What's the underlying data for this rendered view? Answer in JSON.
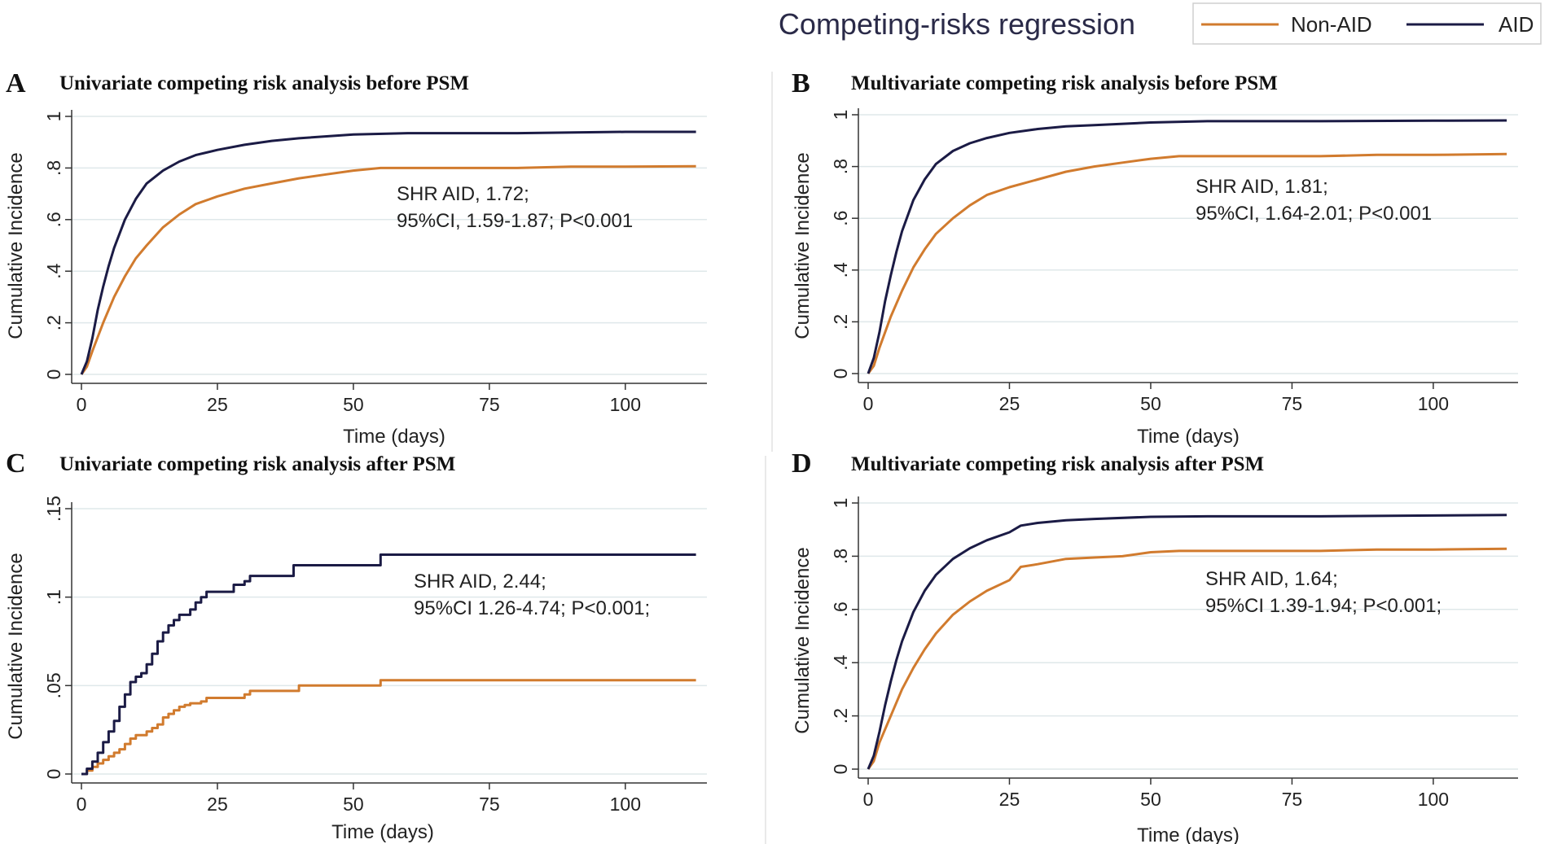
{
  "figure": {
    "title": "Competing-risks regression",
    "legend": [
      {
        "label": "Non-AID",
        "color": "#d17b2e"
      },
      {
        "label": "AID",
        "color": "#1b1b45"
      }
    ]
  },
  "chart_data": [
    {
      "type": "line",
      "panel": "A",
      "title": "Univariate competing risk analysis before PSM",
      "xlabel": "Time (days)",
      "ylabel": "Cumulative Incidence",
      "xlim": [
        0,
        115
      ],
      "ylim": [
        0,
        1.0
      ],
      "x_ticks": [
        0,
        25,
        50,
        75,
        100
      ],
      "y_ticks": [
        0,
        0.2,
        0.4,
        0.6,
        0.8,
        1.0
      ],
      "y_tick_labels": [
        "0",
        ".2",
        ".4",
        ".6",
        ".8",
        "1"
      ],
      "grid": true,
      "annotation": [
        "SHR  AID, 1.72;",
        "95%CI, 1.59-1.87; P<0.001"
      ],
      "series": [
        {
          "name": "Non-AID",
          "color": "#d17b2e",
          "x": [
            0,
            1,
            2,
            4,
            6,
            8,
            10,
            12,
            15,
            18,
            21,
            25,
            30,
            35,
            40,
            45,
            50,
            55,
            60,
            70,
            80,
            90,
            100,
            113
          ],
          "y": [
            0,
            0.03,
            0.09,
            0.2,
            0.3,
            0.38,
            0.45,
            0.5,
            0.57,
            0.62,
            0.66,
            0.69,
            0.72,
            0.74,
            0.76,
            0.775,
            0.79,
            0.8,
            0.8,
            0.8,
            0.8,
            0.805,
            0.805,
            0.807
          ]
        },
        {
          "name": "AID",
          "color": "#1b1b45",
          "x": [
            0,
            1,
            2,
            3,
            4,
            5,
            6,
            8,
            10,
            12,
            15,
            18,
            21,
            25,
            30,
            35,
            40,
            50,
            60,
            80,
            100,
            113
          ],
          "y": [
            0,
            0.05,
            0.14,
            0.25,
            0.34,
            0.42,
            0.49,
            0.6,
            0.68,
            0.74,
            0.79,
            0.825,
            0.85,
            0.87,
            0.89,
            0.905,
            0.915,
            0.93,
            0.935,
            0.935,
            0.94,
            0.94
          ]
        }
      ]
    },
    {
      "type": "line",
      "panel": "B",
      "title": "Multivariate competing risk analysis before PSM",
      "xlabel": "Time (days)",
      "ylabel": "Cumulative Incidence",
      "xlim": [
        0,
        115
      ],
      "ylim": [
        0,
        1.0
      ],
      "x_ticks": [
        0,
        25,
        50,
        75,
        100
      ],
      "y_ticks": [
        0,
        0.2,
        0.4,
        0.6,
        0.8,
        1.0
      ],
      "y_tick_labels": [
        "0",
        ".2",
        ".4",
        ".6",
        ".8",
        "1"
      ],
      "grid": true,
      "annotation": [
        "SHR  AID, 1.81;",
        "95%CI, 1.64-2.01; P<0.001"
      ],
      "series": [
        {
          "name": "Non-AID",
          "color": "#d17b2e",
          "x": [
            0,
            1,
            2,
            4,
            6,
            8,
            10,
            12,
            15,
            18,
            21,
            25,
            30,
            35,
            40,
            45,
            50,
            55,
            60,
            70,
            80,
            90,
            100,
            113
          ],
          "y": [
            0,
            0.03,
            0.1,
            0.22,
            0.32,
            0.41,
            0.48,
            0.54,
            0.6,
            0.65,
            0.69,
            0.72,
            0.75,
            0.78,
            0.8,
            0.815,
            0.83,
            0.84,
            0.84,
            0.84,
            0.84,
            0.845,
            0.845,
            0.848
          ]
        },
        {
          "name": "AID",
          "color": "#1b1b45",
          "x": [
            0,
            1,
            2,
            3,
            4,
            5,
            6,
            8,
            10,
            12,
            15,
            18,
            21,
            25,
            30,
            35,
            40,
            50,
            60,
            80,
            100,
            113
          ],
          "y": [
            0,
            0.06,
            0.16,
            0.28,
            0.38,
            0.47,
            0.55,
            0.67,
            0.75,
            0.81,
            0.86,
            0.89,
            0.91,
            0.93,
            0.945,
            0.955,
            0.96,
            0.97,
            0.975,
            0.975,
            0.977,
            0.978
          ]
        }
      ]
    },
    {
      "type": "line",
      "panel": "C",
      "title": "Univariate competing risk analysis after PSM",
      "xlabel": "Time (days)",
      "ylabel": "Cumulative Incidence",
      "xlim": [
        0,
        115
      ],
      "ylim": [
        0,
        0.15
      ],
      "x_ticks": [
        0,
        25,
        50,
        75,
        100
      ],
      "y_ticks": [
        0,
        0.05,
        0.1,
        0.15
      ],
      "y_tick_labels": [
        "0",
        ".05",
        ".1",
        ".15"
      ],
      "grid": true,
      "annotation": [
        "SHR  AID, 2.44;",
        "95%CI 1.26-4.74; P<0.001;"
      ],
      "series": [
        {
          "name": "Non-AID",
          "color": "#d17b2e",
          "step": true,
          "x": [
            0,
            1,
            2,
            3,
            4,
            5,
            6,
            7,
            8,
            9,
            10,
            12,
            13,
            14,
            15,
            16,
            17,
            18,
            19,
            20,
            22,
            23,
            25,
            28,
            30,
            31,
            35,
            40,
            45,
            50,
            55,
            60,
            70,
            80,
            100,
            113
          ],
          "y": [
            0,
            0.002,
            0.004,
            0.006,
            0.008,
            0.01,
            0.012,
            0.014,
            0.017,
            0.02,
            0.022,
            0.024,
            0.026,
            0.028,
            0.032,
            0.034,
            0.036,
            0.038,
            0.039,
            0.04,
            0.041,
            0.043,
            0.043,
            0.043,
            0.045,
            0.047,
            0.047,
            0.05,
            0.05,
            0.05,
            0.053,
            0.053,
            0.053,
            0.053,
            0.053,
            0.053
          ]
        },
        {
          "name": "AID",
          "color": "#1b1b45",
          "step": true,
          "x": [
            0,
            1,
            2,
            3,
            4,
            5,
            6,
            7,
            8,
            9,
            10,
            11,
            12,
            13,
            14,
            15,
            16,
            17,
            18,
            19,
            20,
            21,
            22,
            23,
            25,
            27,
            28,
            30,
            31,
            35,
            39,
            45,
            50,
            55,
            60,
            70,
            80,
            100,
            113
          ],
          "y": [
            0,
            0.003,
            0.007,
            0.012,
            0.018,
            0.024,
            0.03,
            0.038,
            0.045,
            0.052,
            0.055,
            0.057,
            0.062,
            0.068,
            0.075,
            0.08,
            0.084,
            0.087,
            0.09,
            0.09,
            0.093,
            0.097,
            0.1,
            0.103,
            0.103,
            0.103,
            0.107,
            0.109,
            0.112,
            0.112,
            0.118,
            0.118,
            0.118,
            0.124,
            0.124,
            0.124,
            0.124,
            0.124,
            0.124
          ]
        }
      ]
    },
    {
      "type": "line",
      "panel": "D",
      "title": "Multivariate competing risk analysis after PSM",
      "xlabel": "Time (days)",
      "ylabel": "Cumulative Incidence",
      "xlim": [
        0,
        115
      ],
      "ylim": [
        0,
        1.0
      ],
      "x_ticks": [
        0,
        25,
        50,
        75,
        100
      ],
      "y_ticks": [
        0,
        0.2,
        0.4,
        0.6,
        0.8,
        1.0
      ],
      "y_tick_labels": [
        "0",
        ".2",
        ".4",
        ".6",
        ".8",
        "1"
      ],
      "grid": true,
      "annotation": [
        "SHR  AID, 1.64;",
        "95%CI 1.39-1.94; P<0.001;"
      ],
      "series": [
        {
          "name": "Non-AID",
          "color": "#d17b2e",
          "x": [
            0,
            1,
            2,
            4,
            6,
            8,
            10,
            12,
            15,
            18,
            21,
            25,
            27,
            30,
            35,
            40,
            45,
            50,
            55,
            60,
            70,
            80,
            90,
            100,
            113
          ],
          "y": [
            0,
            0.03,
            0.1,
            0.2,
            0.3,
            0.38,
            0.45,
            0.51,
            0.58,
            0.63,
            0.67,
            0.71,
            0.76,
            0.77,
            0.79,
            0.795,
            0.8,
            0.815,
            0.82,
            0.82,
            0.82,
            0.82,
            0.825,
            0.825,
            0.828
          ]
        },
        {
          "name": "AID",
          "color": "#1b1b45",
          "x": [
            0,
            1,
            2,
            3,
            4,
            5,
            6,
            8,
            10,
            12,
            15,
            18,
            21,
            25,
            27,
            30,
            35,
            40,
            50,
            60,
            80,
            100,
            113
          ],
          "y": [
            0,
            0.05,
            0.14,
            0.24,
            0.33,
            0.41,
            0.48,
            0.59,
            0.67,
            0.73,
            0.79,
            0.83,
            0.86,
            0.89,
            0.915,
            0.925,
            0.935,
            0.94,
            0.948,
            0.95,
            0.95,
            0.953,
            0.955
          ]
        }
      ]
    }
  ]
}
